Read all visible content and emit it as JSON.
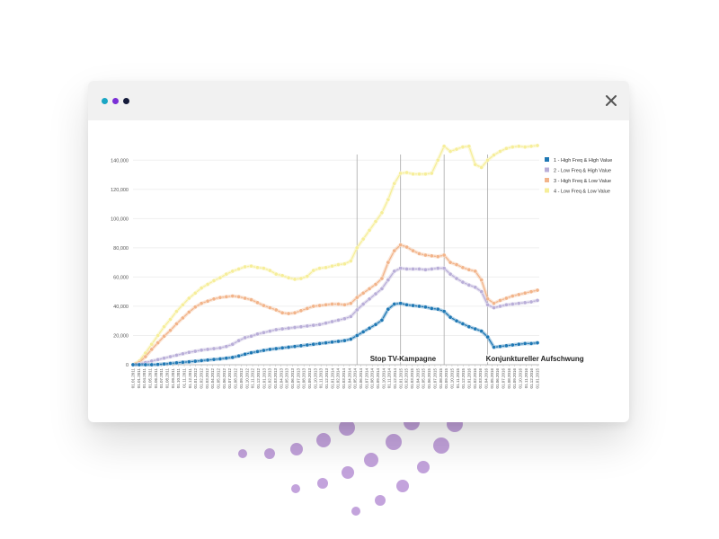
{
  "window": {
    "traffic_lights": [
      "#1aa6c4",
      "#7a2fd6",
      "#141a3a"
    ],
    "close_icon": "close-icon"
  },
  "chart_data": {
    "type": "line",
    "title": "",
    "xlabel": "",
    "ylabel": "",
    "ylim": [
      0,
      150000
    ],
    "yticks": [
      0,
      20000,
      40000,
      60000,
      80000,
      100000,
      120000,
      140000
    ],
    "ytick_labels": [
      "0",
      "20,000",
      "40,000",
      "60,000",
      "80,000",
      "100,000",
      "120,000",
      "140,000"
    ],
    "grid": true,
    "legend_position": "top-right",
    "x": [
      "01.10.2011",
      "01.11.2011",
      "01.12.2011",
      "01.01.2012",
      "01.02.2012",
      "01.03.2012",
      "01.04.2012",
      "01.05.2012",
      "01.06.2012",
      "01.07.2012",
      "01.08.2012",
      "01.09.2012",
      "01.10.2012",
      "01.11.2012",
      "01.12.2012",
      "01.01.2013",
      "01.02.2013",
      "01.03.2013",
      "01.04.2013",
      "01.05.2013",
      "01.06.2013",
      "01.07.2013",
      "01.08.2013",
      "01.09.2013",
      "01.10.2013",
      "01.11.2013",
      "01.12.2013",
      "01.01.2014",
      "01.02.2014",
      "01.03.2014",
      "01.04.2014",
      "01.05.2014",
      "01.06.2014",
      "01.07.2014",
      "01.08.2014",
      "01.09.2014",
      "01.10.2014",
      "01.11.2014",
      "01.12.2014",
      "01.01.2015",
      "01.02.2015",
      "01.03.2015",
      "01.04.2015",
      "01.05.2015",
      "01.06.2015",
      "01.07.2015",
      "01.08.2015",
      "01.09.2015",
      "01.10.2015",
      "01.11.2015",
      "01.12.2015",
      "01.01.2016",
      "01.02.2016",
      "01.03.2016",
      "01.04.2016",
      "01.05.2016",
      "01.06.2016",
      "01.07.2016",
      "01.08.2016",
      "01.09.2016",
      "01.10.2016",
      "01.11.2016",
      "01.12.2016",
      "01.01.2017",
      "01.02.2017",
      "01.03.2017"
    ],
    "x_tick_labels": [
      "01.01.2011",
      "01.01.2011",
      "01.04.2011",
      "01.05.2011",
      "01.06.2011",
      "01.07.2011",
      "01.08.2011",
      "01.09.2011",
      "01.10.2011",
      "01.11.2011",
      "01.12.2011",
      "01.01.2012",
      "01.02.2012",
      "01.03.2012",
      "01.04.2012",
      "01.05.2012",
      "01.06.2012",
      "01.07.2012",
      "01.08.2012",
      "01.09.2012",
      "01.10.2012",
      "01.11.2012",
      "01.12.2012",
      "01.01.2013",
      "01.02.2013",
      "01.03.2013",
      "01.04.2013",
      "01.05.2013",
      "01.06.2013",
      "01.07.2013",
      "01.08.2013",
      "01.09.2013",
      "01.10.2013",
      "01.11.2013",
      "01.12.2013",
      "01.01.2014",
      "01.02.2014",
      "01.03.2014",
      "01.04.2014",
      "01.05.2014",
      "01.06.2014",
      "01.07.2014",
      "01.08.2014",
      "01.09.2014",
      "01.10.2014",
      "01.11.2014",
      "01.12.2014",
      "01.01.2015",
      "01.02.2015",
      "01.03.2015",
      "01.04.2015",
      "01.05.2015",
      "01.06.2015",
      "01.07.2015",
      "01.08.2015",
      "01.09.2015",
      "01.10.2015",
      "01.11.2015",
      "01.12.2015",
      "01.01.2016",
      "01.02.2016",
      "01.03.2016",
      "01.04.2016",
      "01.05.2016",
      "01.06.2016",
      "01.07.2016",
      "01.08.2016",
      "01.09.2016",
      "01.10.2016",
      "01.11.2016",
      "01.12.2016",
      "01.01.2015"
    ],
    "series": [
      {
        "name": "4 - Low Freq & Low Value",
        "color": "#f6ee9a",
        "values": [
          0,
          2500,
          8000,
          14000,
          20000,
          26000,
          31000,
          36500,
          41000,
          45500,
          49000,
          52500,
          55000,
          57500,
          59500,
          62000,
          64000,
          65500,
          67000,
          67500,
          66500,
          66000,
          64500,
          62000,
          61000,
          59500,
          58500,
          59000,
          60500,
          64500,
          66000,
          66500,
          67500,
          68500,
          69000,
          71000,
          80000,
          86000,
          92000,
          98000,
          104000,
          113000,
          124000,
          131000,
          131500,
          130500,
          130500,
          130500,
          131000,
          140000,
          149500,
          146000,
          147500,
          149000,
          149500,
          137000,
          135000,
          140000,
          143500,
          146000,
          148000,
          149000,
          149500,
          149000,
          149500,
          150000
        ]
      },
      {
        "name": "3 - High Freq & Low Value",
        "color": "#f2b48a",
        "values": [
          0,
          1500,
          5500,
          10500,
          15000,
          19500,
          23500,
          28000,
          32000,
          36000,
          39500,
          42000,
          43500,
          45000,
          46000,
          46500,
          47000,
          46500,
          45500,
          44500,
          42500,
          40500,
          39000,
          37500,
          35500,
          35000,
          35500,
          37000,
          38500,
          40000,
          40500,
          41000,
          41500,
          41500,
          41000,
          42000,
          46000,
          49000,
          52000,
          55000,
          59000,
          70000,
          78000,
          82000,
          80500,
          78000,
          76000,
          75000,
          74500,
          74000,
          75000,
          70000,
          68500,
          66500,
          65000,
          64000,
          58000,
          45000,
          42000,
          44000,
          45500,
          47000,
          48000,
          49000,
          50000,
          51000
        ]
      },
      {
        "name": "2 - Low Freq & High Value",
        "color": "#b9aed8",
        "values": [
          0,
          500,
          1500,
          2500,
          3500,
          4500,
          5500,
          6500,
          7500,
          8500,
          9200,
          10000,
          10500,
          11000,
          11500,
          12500,
          14000,
          16500,
          18500,
          19500,
          21000,
          22000,
          23000,
          24000,
          24500,
          25000,
          25500,
          26000,
          26500,
          27000,
          27500,
          28500,
          29500,
          30500,
          31500,
          33000,
          37500,
          41500,
          45000,
          48500,
          52000,
          58000,
          64000,
          66000,
          65500,
          65500,
          65500,
          65000,
          65500,
          66000,
          66000,
          62000,
          59000,
          56500,
          54500,
          53000,
          50000,
          41000,
          39000,
          40000,
          41000,
          41500,
          42000,
          42500,
          43000,
          44000
        ]
      },
      {
        "name": "1 - High Freq & High Value",
        "color": "#1f78b4",
        "values": [
          0,
          0,
          0,
          0,
          200,
          500,
          900,
          1300,
          1700,
          2000,
          2400,
          2800,
          3200,
          3600,
          4000,
          4500,
          5000,
          6000,
          7200,
          8200,
          9000,
          9800,
          10500,
          11000,
          11500,
          12000,
          12500,
          13000,
          13500,
          14000,
          14500,
          15000,
          15500,
          16000,
          16500,
          17500,
          20000,
          22500,
          25000,
          27500,
          30500,
          38000,
          41500,
          42000,
          41000,
          40500,
          40000,
          39500,
          38500,
          38000,
          36500,
          32500,
          30000,
          28000,
          26000,
          24500,
          23000,
          19000,
          12000,
          12500,
          13000,
          13500,
          14000,
          14500,
          14500,
          15000
        ]
      }
    ],
    "legend": [
      "1 - High Freq & High Value",
      "2 - Low Freq & High Value",
      "3 - High Freq & Low Value",
      "4 - Low Freq & Low Value"
    ],
    "legend_colors": [
      "#1f78b4",
      "#b9aed8",
      "#f2b48a",
      "#f6ee9a"
    ],
    "event_lines_at_index": [
      36,
      43,
      50,
      57
    ],
    "annotations": [
      {
        "text": "Stop TV-Kampagne",
        "anchor_index": 43
      },
      {
        "text": "Konjunktureller Aufschwung",
        "anchor_index": 57
      }
    ]
  }
}
